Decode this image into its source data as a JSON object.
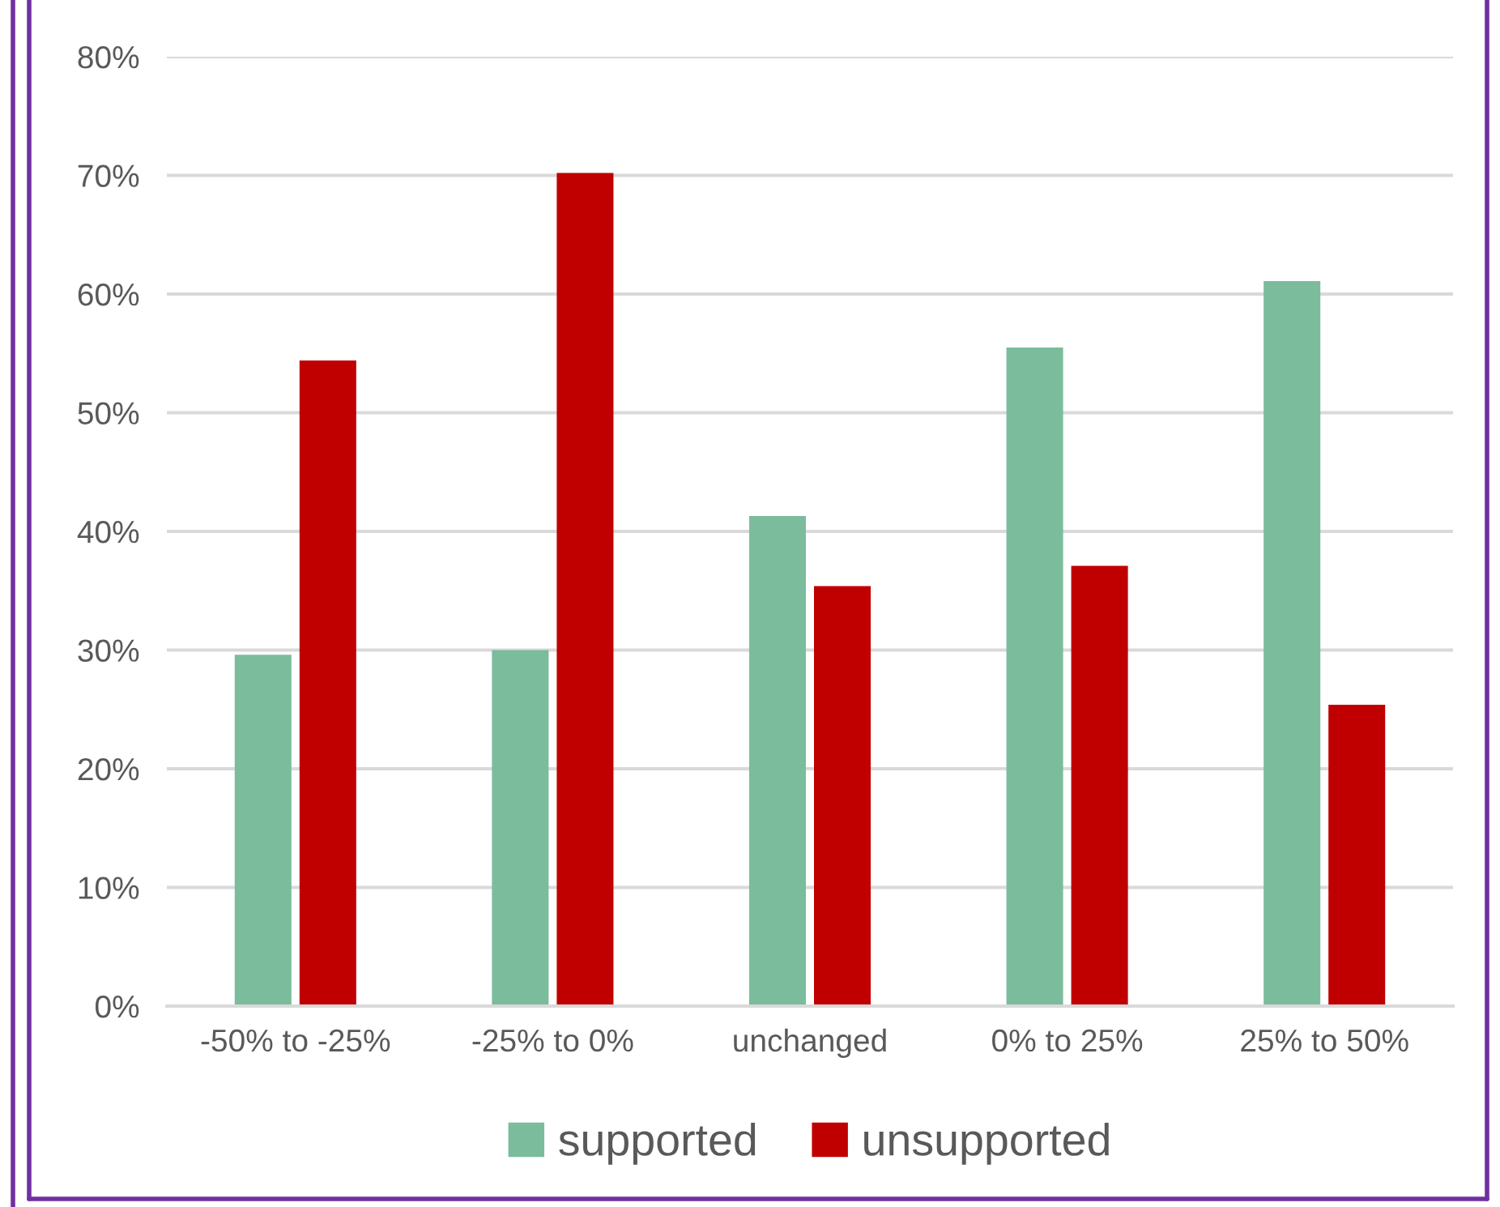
{
  "chart_data": {
    "type": "bar",
    "categories": [
      "-50% to -25%",
      "-25% to 0%",
      "unchanged",
      "0% to 25%",
      "25% to 50%"
    ],
    "series": [
      {
        "name": "supported",
        "color": "#7bbc9c",
        "values": [
          29.6,
          30.0,
          41.3,
          55.5,
          61.1
        ]
      },
      {
        "name": "unsupported",
        "color": "#c00000",
        "values": [
          54.4,
          70.2,
          35.4,
          37.1,
          25.4
        ]
      }
    ],
    "ylim": [
      0,
      80
    ],
    "yticks": [
      {
        "value": 0,
        "label": "0%"
      },
      {
        "value": 10,
        "label": "10%"
      },
      {
        "value": 20,
        "label": "20%"
      },
      {
        "value": 30,
        "label": "30%"
      },
      {
        "value": 40,
        "label": "40%"
      },
      {
        "value": 50,
        "label": "50%"
      },
      {
        "value": 60,
        "label": "60%"
      },
      {
        "value": 70,
        "label": "70%"
      },
      {
        "value": 80,
        "label": "80%"
      }
    ],
    "grid": "y",
    "legend": "bottom"
  }
}
